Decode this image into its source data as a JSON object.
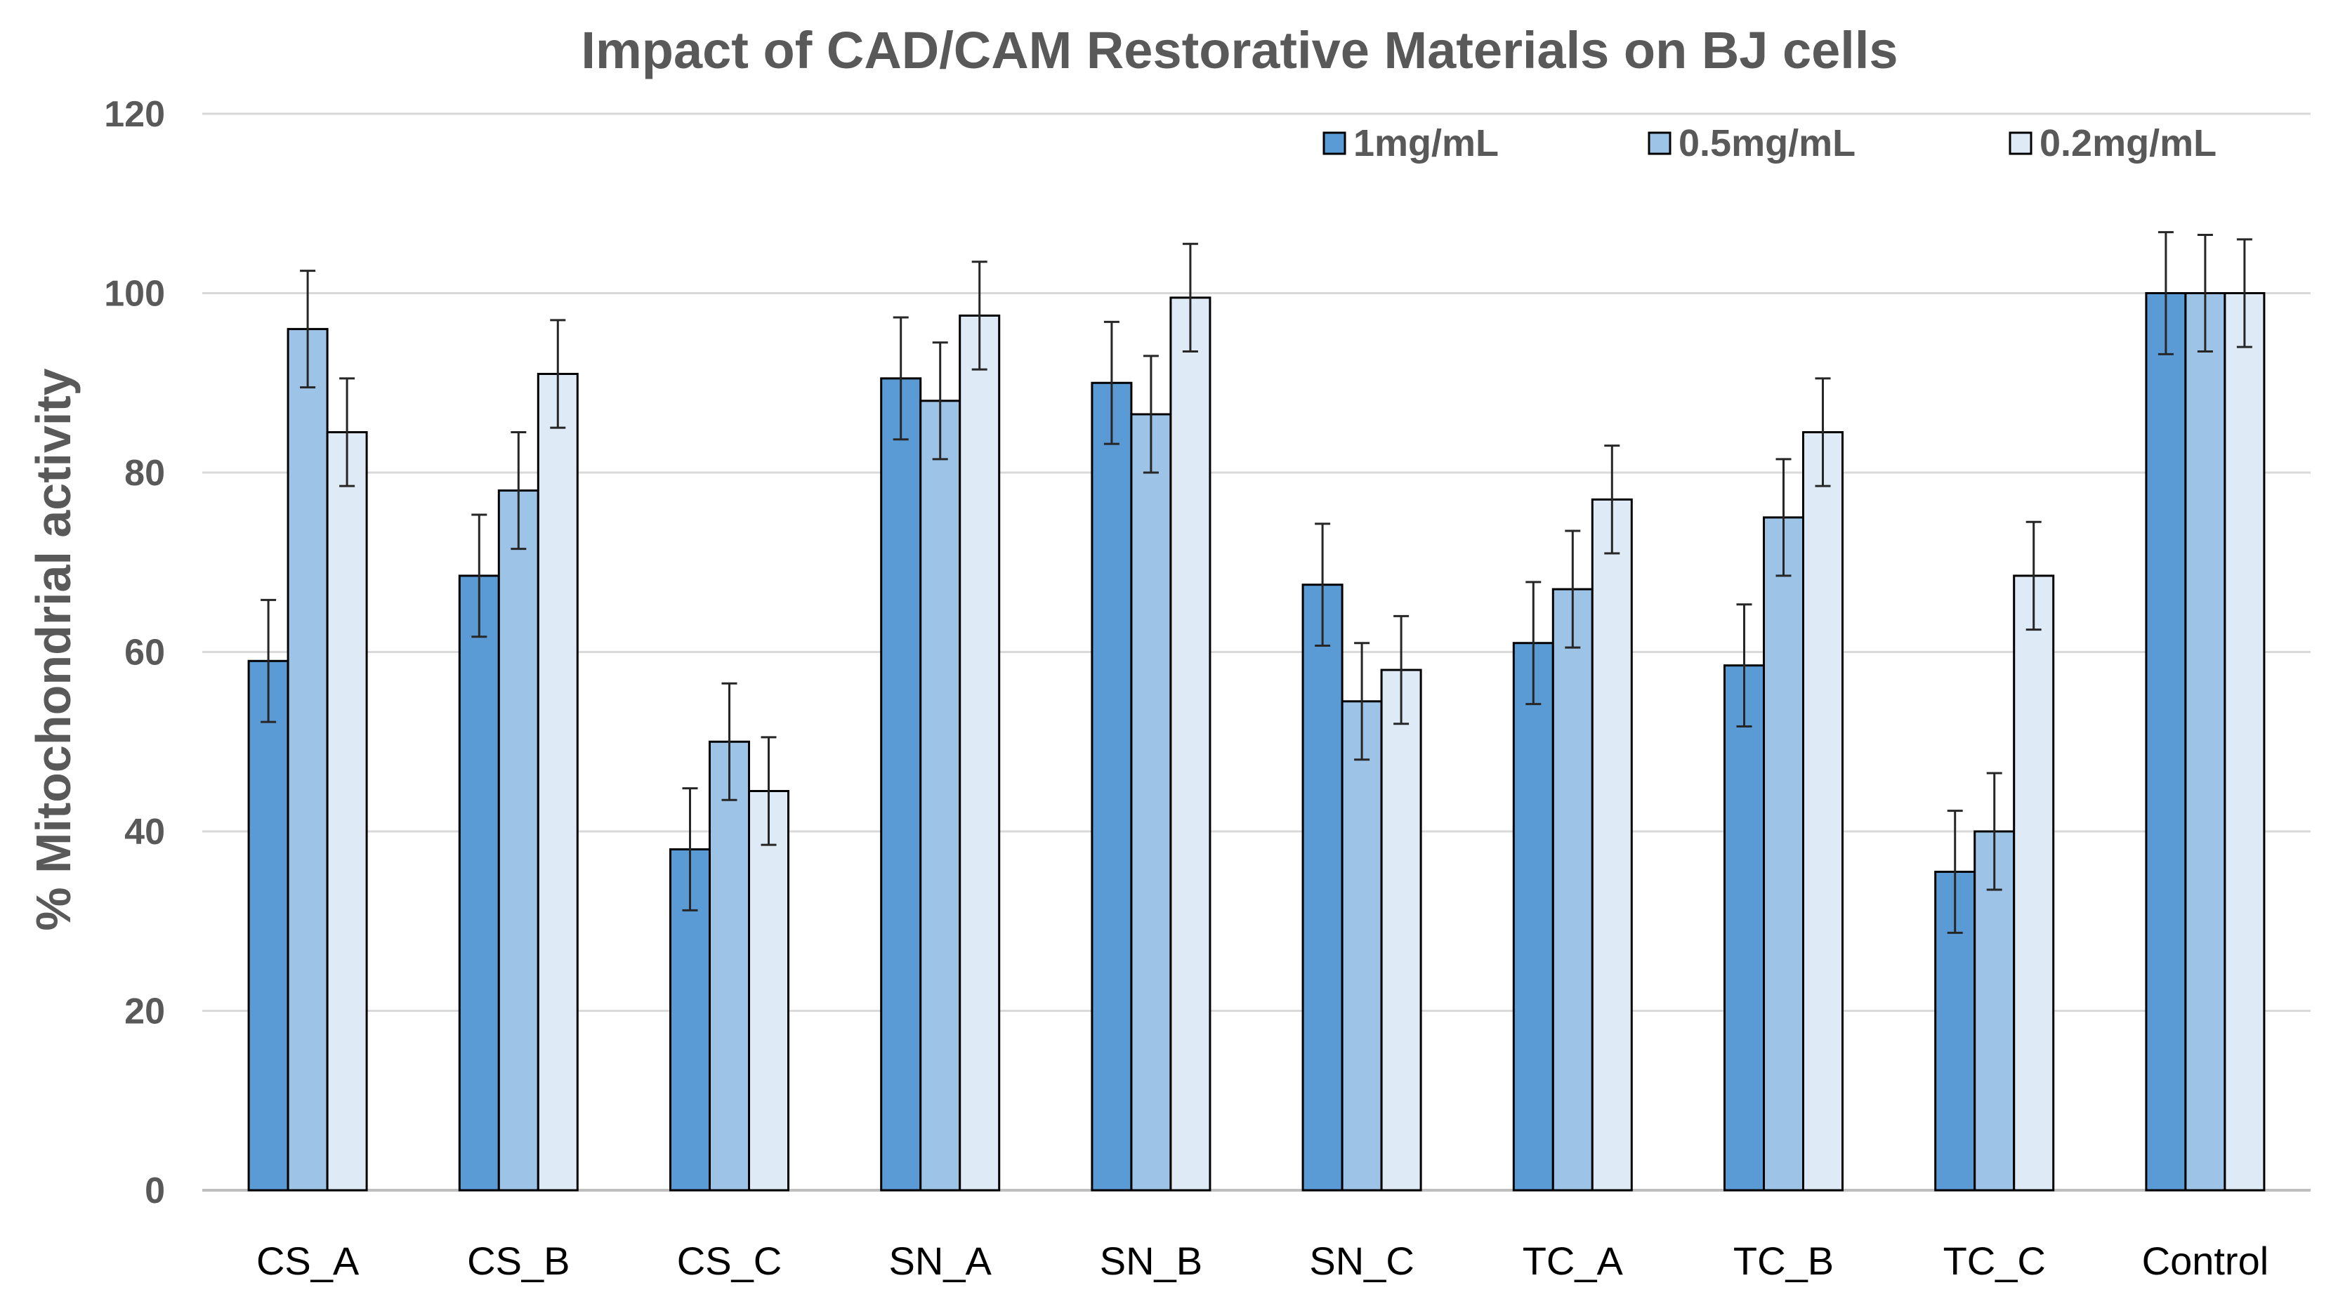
{
  "chart_data": {
    "type": "bar",
    "title": "Impact of CAD/CAM Restorative Materials on BJ cells",
    "xlabel": "",
    "ylabel": "% Mitochondrial activity",
    "ylim": [
      0,
      120
    ],
    "yticks": [
      "0",
      "20",
      "40",
      "60",
      "80",
      "100",
      "120"
    ],
    "grid": true,
    "legend_position": "top-right",
    "categories": [
      "CS_A",
      "CS_B",
      "CS_C",
      "SN_A",
      "SN_B",
      "SN_C",
      "TC_A",
      "TC_B",
      "TC_C",
      "Control"
    ],
    "series": [
      {
        "name": "1mg/mL",
        "color": "#5b9bd5",
        "values": [
          59,
          68.5,
          38,
          90.5,
          90,
          67.5,
          61,
          58.5,
          35.5,
          100
        ],
        "errors": [
          6.8,
          6.8,
          6.8,
          6.8,
          6.8,
          6.8,
          6.8,
          6.8,
          6.8,
          6.8
        ]
      },
      {
        "name": "0.5mg/mL",
        "color": "#9dc3e6",
        "values": [
          96,
          78,
          50,
          88,
          86.5,
          54.5,
          67,
          75,
          40,
          100
        ],
        "errors": [
          6.5,
          6.5,
          6.5,
          6.5,
          6.5,
          6.5,
          6.5,
          6.5,
          6.5,
          6.5
        ]
      },
      {
        "name": "0.2mg/mL",
        "color": "#deebf7",
        "values": [
          84.5,
          91,
          44.5,
          97.5,
          99.5,
          58,
          77,
          84.5,
          68.5,
          100
        ],
        "errors": [
          6,
          6,
          6,
          6,
          6,
          6,
          6,
          6,
          6,
          6
        ]
      }
    ]
  }
}
